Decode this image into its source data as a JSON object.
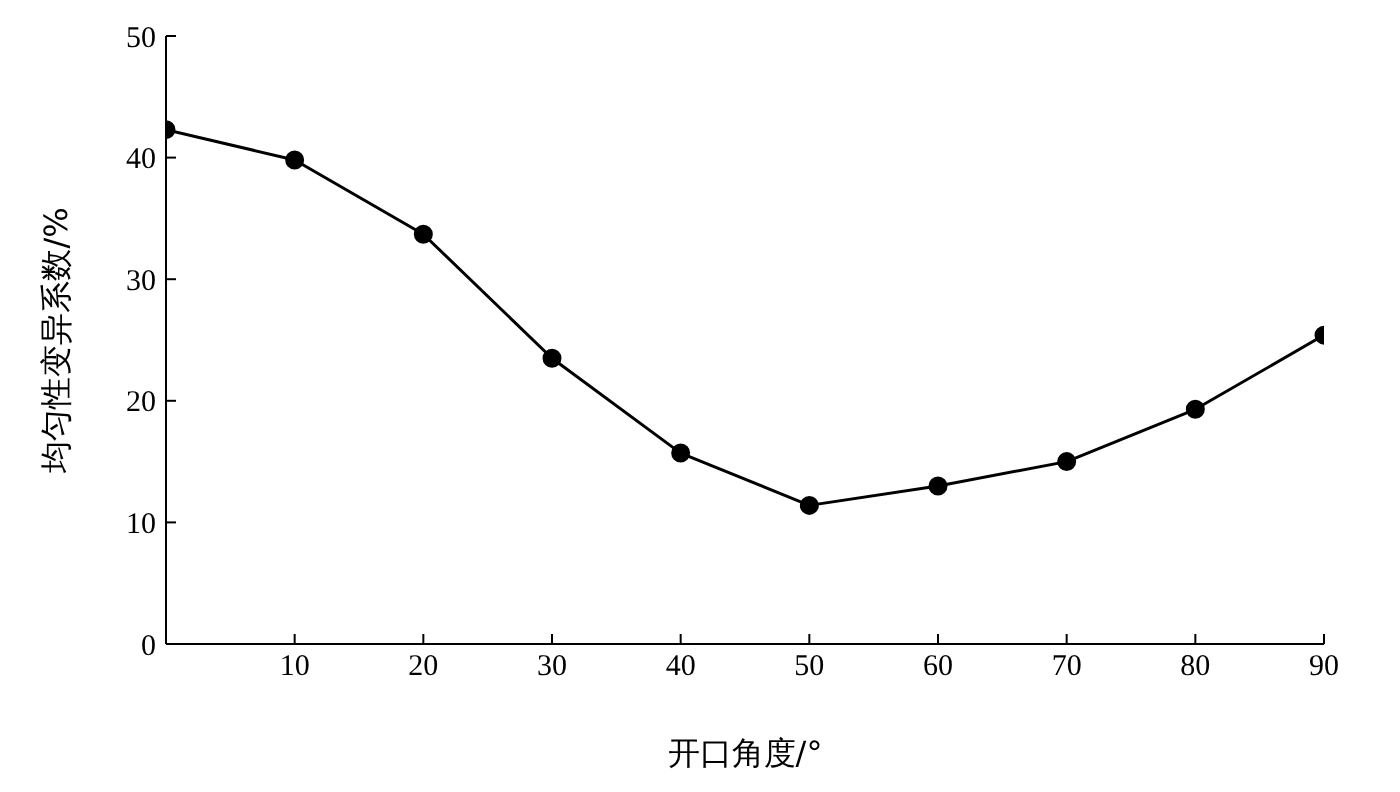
{
  "chart_data": {
    "type": "line",
    "xlabel": "开口角度/°",
    "ylabel": "均匀性变异系数/%",
    "x": [
      0,
      10,
      20,
      30,
      40,
      50,
      60,
      70,
      80,
      90
    ],
    "series": [
      {
        "color": "#000000",
        "values": [
          42.3,
          39.8,
          33.7,
          23.5,
          15.7,
          11.4,
          13.0,
          15.0,
          19.3,
          25.4
        ]
      }
    ],
    "xlim": [
      0,
      90
    ],
    "xticks": [
      10,
      20,
      30,
      40,
      50,
      60,
      70,
      80,
      90
    ],
    "ylim": [
      0,
      50
    ],
    "yticks": [
      0,
      10,
      20,
      30,
      40,
      50
    ],
    "grid": false,
    "legend": false,
    "marker": "circle",
    "line_style": "solid"
  }
}
